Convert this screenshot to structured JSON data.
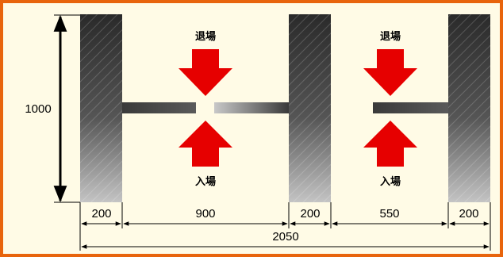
{
  "labels": {
    "exit_left": "退場",
    "exit_right": "退場",
    "entry_left": "入場",
    "entry_right": "入場"
  },
  "dimensions": {
    "height": "1000",
    "segments": [
      "200",
      "900",
      "200",
      "550",
      "200"
    ],
    "total": "2050"
  },
  "colors": {
    "frame_border": "#e8640c",
    "background": "#fffbe6",
    "arrow": "#e60000",
    "post_dark": "#2a2a2a",
    "post_light": "#bdbdbd"
  },
  "icons": {
    "exit_arrow": "arrow-down-icon",
    "entry_arrow": "arrow-up-icon"
  }
}
